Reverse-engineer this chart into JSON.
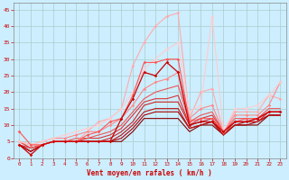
{
  "xlabel": "Vent moyen/en rafales ( km/h )",
  "background_color": "#cceeff",
  "grid_color": "#aacccc",
  "xlim": [
    -0.5,
    23.5
  ],
  "ylim": [
    0,
    47
  ],
  "yticks": [
    0,
    5,
    10,
    15,
    20,
    25,
    30,
    35,
    40,
    45
  ],
  "xticks": [
    0,
    1,
    2,
    3,
    4,
    5,
    6,
    7,
    8,
    9,
    10,
    11,
    12,
    13,
    14,
    15,
    16,
    17,
    18,
    19,
    20,
    21,
    22,
    23
  ],
  "series": [
    {
      "x": [
        0,
        1,
        2,
        3,
        4,
        5,
        6,
        7,
        8,
        9,
        10,
        11,
        12,
        13,
        14,
        15,
        16,
        17,
        18,
        19,
        20,
        21,
        22,
        23
      ],
      "y": [
        4,
        1,
        4,
        5,
        5,
        5,
        5,
        5,
        5,
        12,
        18,
        26,
        25,
        29,
        26,
        10,
        11,
        11,
        8,
        11,
        11,
        12,
        14,
        14
      ],
      "color": "#cc0000",
      "linewidth": 0.9,
      "marker": "D",
      "markersize": 1.8,
      "zorder": 5
    },
    {
      "x": [
        0,
        1,
        2,
        3,
        4,
        5,
        6,
        7,
        8,
        9,
        10,
        11,
        12,
        13,
        14,
        15,
        16,
        17,
        18,
        19,
        20,
        21,
        22,
        23
      ],
      "y": [
        8,
        4,
        4,
        5,
        5,
        5,
        7,
        8,
        11,
        12,
        19,
        29,
        29,
        30,
        30,
        11,
        12,
        12,
        8,
        11,
        12,
        12,
        14,
        14
      ],
      "color": "#ff5555",
      "linewidth": 0.8,
      "marker": "D",
      "markersize": 1.8,
      "zorder": 4
    },
    {
      "x": [
        0,
        1,
        2,
        3,
        4,
        5,
        6,
        7,
        8,
        9,
        10,
        11,
        12,
        13,
        14,
        15,
        16,
        17,
        18,
        19,
        20,
        21,
        22,
        23
      ],
      "y": [
        5,
        4,
        4,
        5,
        5,
        5,
        8,
        11,
        12,
        15,
        28,
        35,
        40,
        43,
        44,
        12,
        20,
        21,
        8,
        14,
        14,
        14,
        19,
        18
      ],
      "color": "#ffaaaa",
      "linewidth": 0.8,
      "marker": "D",
      "markersize": 1.8,
      "zorder": 3
    },
    {
      "x": [
        0,
        1,
        2,
        3,
        4,
        5,
        6,
        7,
        8,
        9,
        10,
        11,
        12,
        13,
        14,
        15,
        16,
        17,
        18,
        19,
        20,
        21,
        22,
        23
      ],
      "y": [
        4,
        2,
        4,
        5,
        5,
        5,
        5,
        5,
        5,
        5,
        8,
        12,
        12,
        12,
        12,
        8,
        10,
        10,
        7,
        10,
        10,
        10,
        13,
        13
      ],
      "color": "#880000",
      "linewidth": 0.8,
      "marker": null,
      "markersize": 0,
      "zorder": 2
    },
    {
      "x": [
        0,
        1,
        2,
        3,
        4,
        5,
        6,
        7,
        8,
        9,
        10,
        11,
        12,
        13,
        14,
        15,
        16,
        17,
        18,
        19,
        20,
        21,
        22,
        23
      ],
      "y": [
        4,
        2,
        4,
        5,
        5,
        5,
        5,
        5,
        5,
        6,
        9,
        13,
        14,
        14,
        14,
        9,
        10,
        11,
        7,
        10,
        10,
        11,
        13,
        13
      ],
      "color": "#aa0000",
      "linewidth": 0.8,
      "marker": null,
      "markersize": 0,
      "zorder": 2
    },
    {
      "x": [
        0,
        1,
        2,
        3,
        4,
        5,
        6,
        7,
        8,
        9,
        10,
        11,
        12,
        13,
        14,
        15,
        16,
        17,
        18,
        19,
        20,
        21,
        22,
        23
      ],
      "y": [
        4,
        2,
        4,
        5,
        5,
        5,
        5,
        5,
        5,
        7,
        10,
        14,
        15,
        15,
        15,
        9,
        10,
        11,
        7,
        10,
        11,
        11,
        13,
        13
      ],
      "color": "#bb1111",
      "linewidth": 0.8,
      "marker": null,
      "markersize": 0,
      "zorder": 2
    },
    {
      "x": [
        0,
        1,
        2,
        3,
        4,
        5,
        6,
        7,
        8,
        9,
        10,
        11,
        12,
        13,
        14,
        15,
        16,
        17,
        18,
        19,
        20,
        21,
        22,
        23
      ],
      "y": [
        4,
        3,
        4,
        5,
        5,
        5,
        5,
        5,
        6,
        8,
        11,
        16,
        17,
        17,
        17,
        10,
        11,
        12,
        7,
        11,
        11,
        11,
        14,
        14
      ],
      "color": "#cc2222",
      "linewidth": 0.8,
      "marker": null,
      "markersize": 0,
      "zorder": 2
    },
    {
      "x": [
        0,
        1,
        2,
        3,
        4,
        5,
        6,
        7,
        8,
        9,
        10,
        11,
        12,
        13,
        14,
        15,
        16,
        17,
        18,
        19,
        20,
        21,
        22,
        23
      ],
      "y": [
        5,
        3,
        4,
        5,
        5,
        5,
        6,
        6,
        7,
        9,
        13,
        17,
        18,
        18,
        19,
        10,
        12,
        13,
        8,
        11,
        11,
        12,
        14,
        14
      ],
      "color": "#dd3333",
      "linewidth": 0.8,
      "marker": null,
      "markersize": 0,
      "zorder": 2
    },
    {
      "x": [
        0,
        1,
        2,
        3,
        4,
        5,
        6,
        7,
        8,
        9,
        10,
        11,
        12,
        13,
        14,
        15,
        16,
        17,
        18,
        19,
        20,
        21,
        22,
        23
      ],
      "y": [
        5,
        3,
        4,
        5,
        5,
        6,
        6,
        7,
        8,
        10,
        14,
        18,
        20,
        21,
        22,
        11,
        13,
        14,
        8,
        12,
        12,
        12,
        15,
        15
      ],
      "color": "#ee5555",
      "linewidth": 0.8,
      "marker": null,
      "markersize": 0,
      "zorder": 2
    },
    {
      "x": [
        0,
        1,
        2,
        3,
        4,
        5,
        6,
        7,
        8,
        9,
        10,
        11,
        12,
        13,
        14,
        15,
        16,
        17,
        18,
        19,
        20,
        21,
        22,
        23
      ],
      "y": [
        5,
        4,
        5,
        6,
        6,
        7,
        8,
        8,
        10,
        12,
        16,
        21,
        23,
        24,
        26,
        12,
        15,
        16,
        8,
        13,
        13,
        13,
        16,
        23
      ],
      "color": "#ff8888",
      "linewidth": 0.8,
      "marker": "D",
      "markersize": 1.8,
      "zorder": 3
    },
    {
      "x": [
        0,
        1,
        2,
        3,
        4,
        5,
        6,
        7,
        8,
        9,
        10,
        11,
        12,
        13,
        14,
        15,
        16,
        17,
        18,
        19,
        20,
        21,
        22,
        23
      ],
      "y": [
        5,
        4,
        5,
        6,
        7,
        8,
        9,
        10,
        12,
        15,
        20,
        27,
        30,
        33,
        35,
        14,
        16,
        43,
        8,
        15,
        15,
        16,
        19,
        23
      ],
      "color": "#ffcccc",
      "linewidth": 0.8,
      "marker": "D",
      "markersize": 1.8,
      "zorder": 3
    }
  ]
}
